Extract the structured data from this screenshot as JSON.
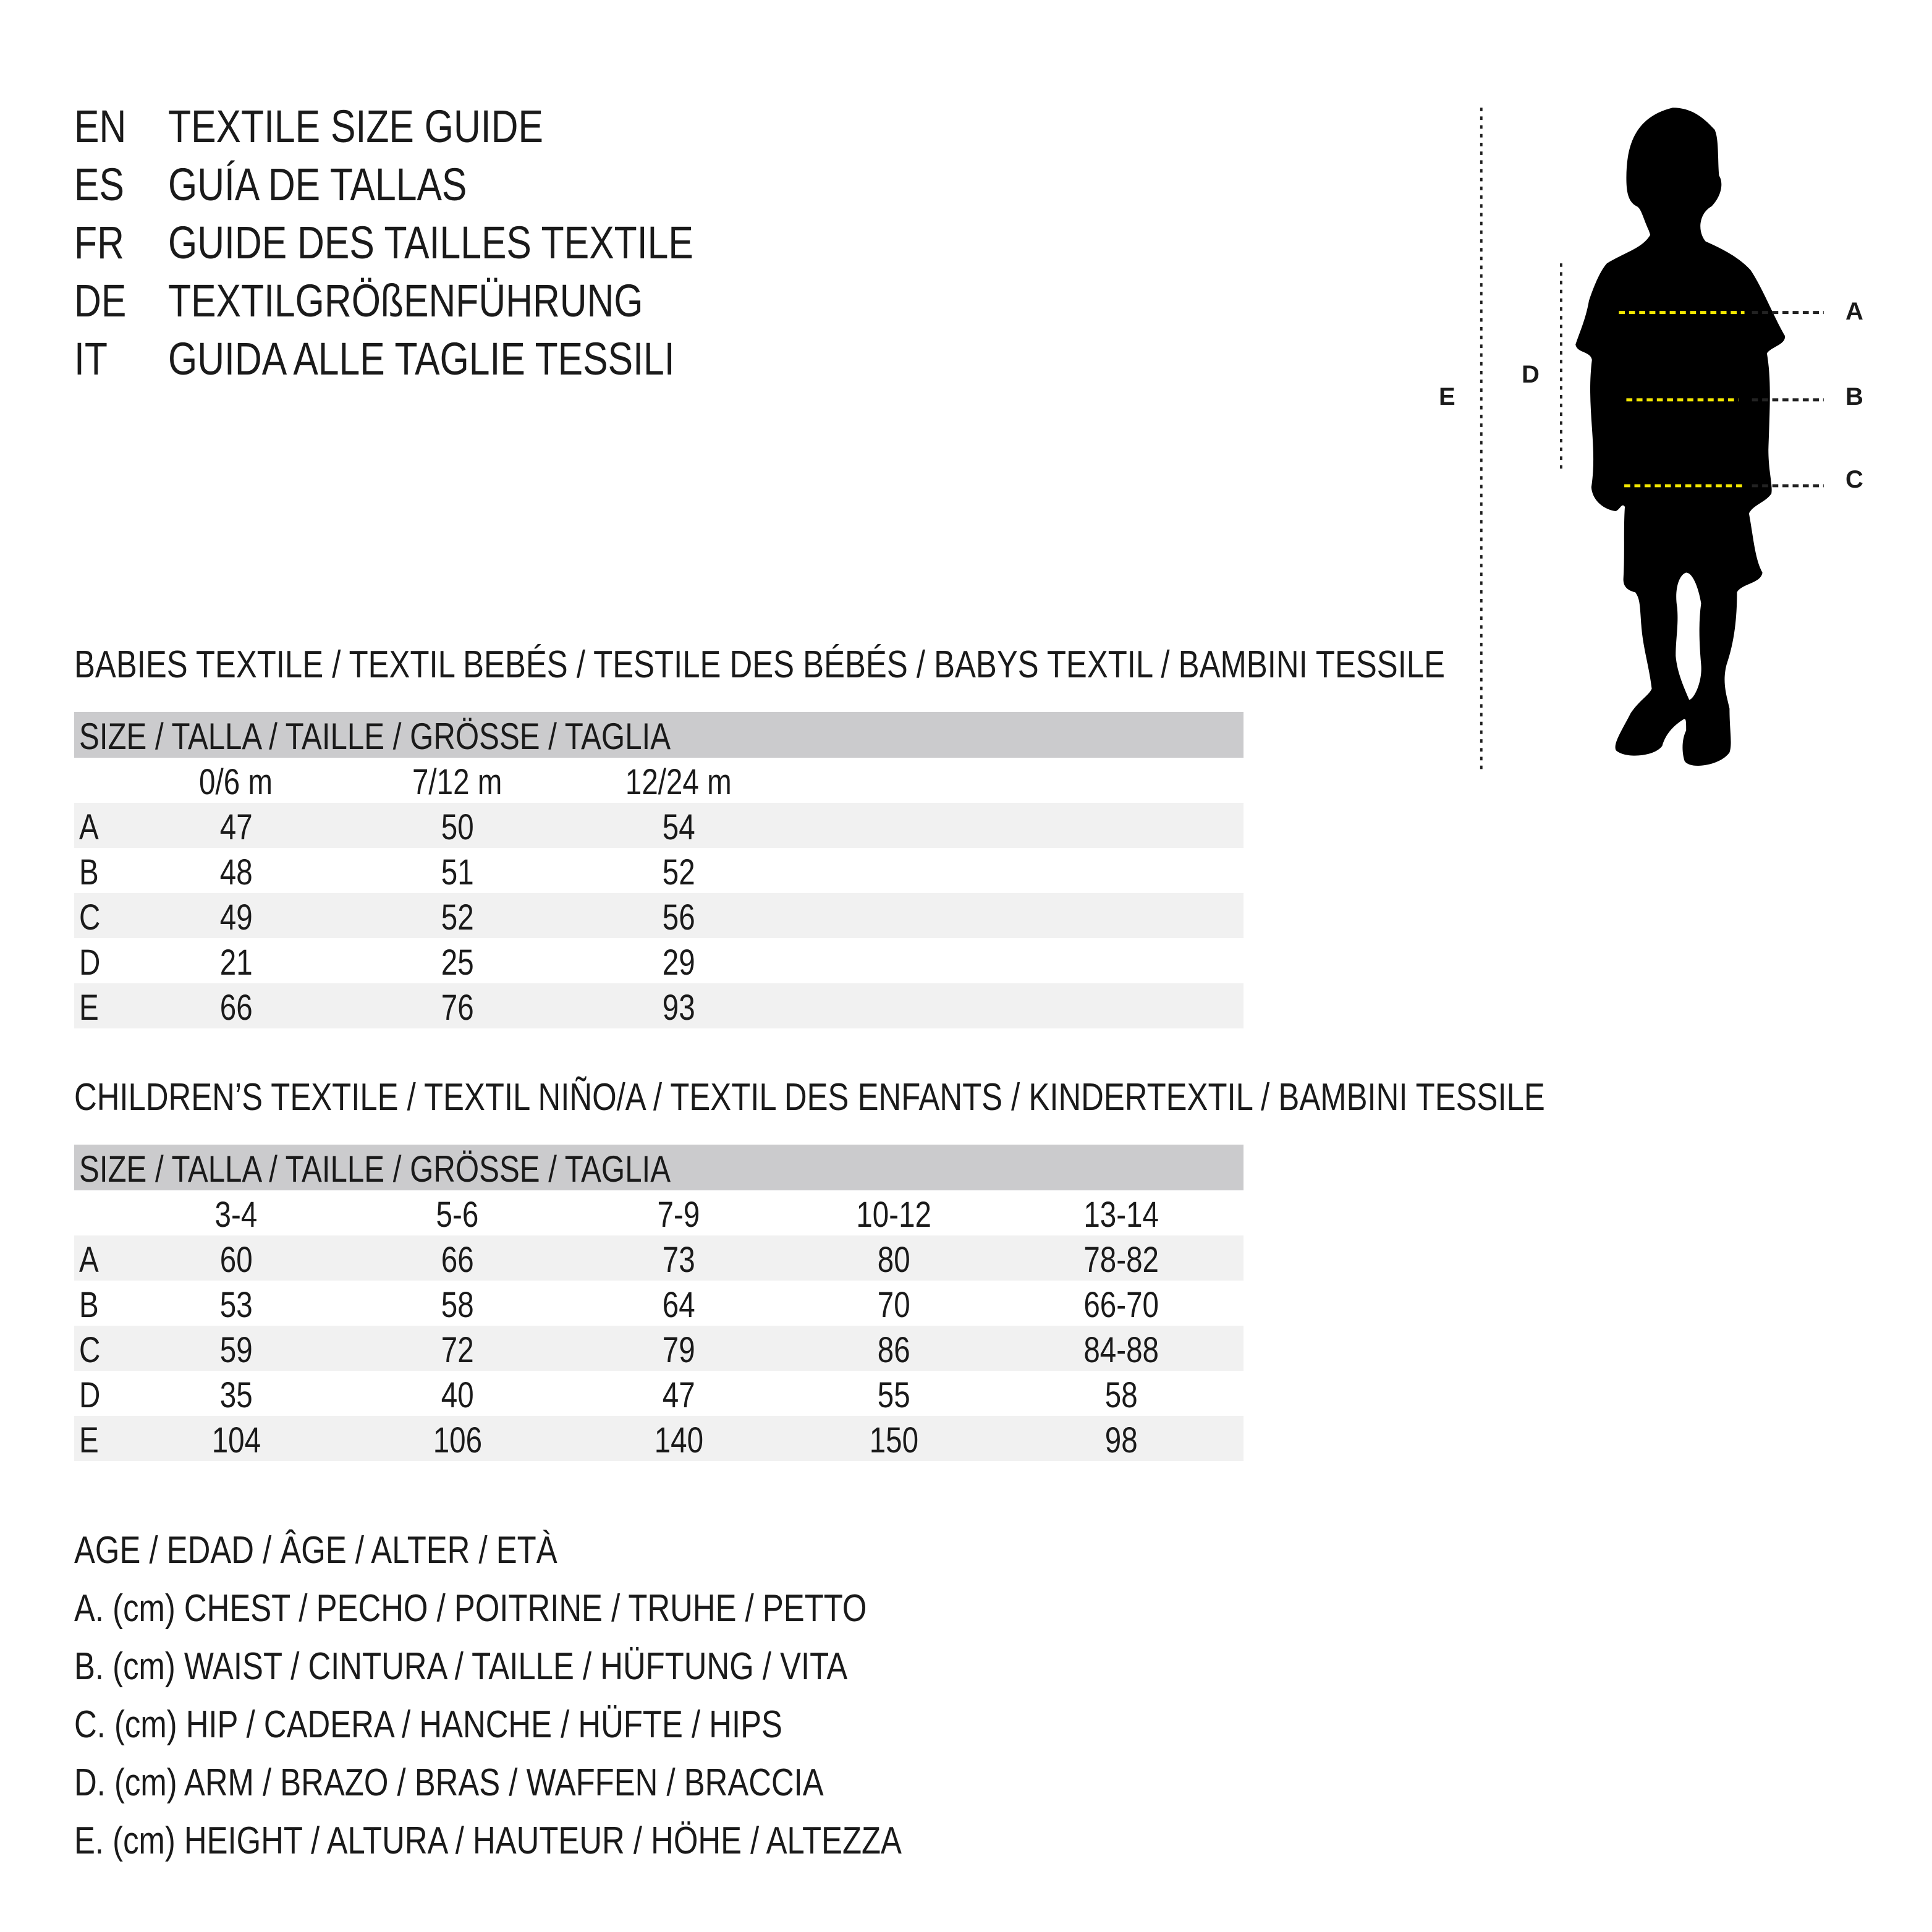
{
  "titles": [
    {
      "code": "EN",
      "text": "TEXTILE SIZE GUIDE"
    },
    {
      "code": "ES",
      "text": "GUÍA DE TALLAS"
    },
    {
      "code": "FR",
      "text": "GUIDE DES TAILLES TEXTILE"
    },
    {
      "code": "DE",
      "text": "TEXTILGRÖßENFÜHRUNG"
    },
    {
      "code": "IT",
      "text": "GUIDA ALLE TAGLIE TESSILI"
    }
  ],
  "figure": {
    "labels": {
      "A": "A",
      "B": "B",
      "C": "C",
      "D": "D",
      "E": "E"
    },
    "colors": {
      "silhouette": "#000000",
      "measure_line": "#f2e600",
      "guide_line": "#222222"
    }
  },
  "babies": {
    "heading": "BABIES TEXTILE / TEXTIL BEBÉS / TESTILE DES BÉBÉS / BABYS TEXTIL / BAMBINI TESSILE",
    "size_header": "SIZE / TALLA / TAILLE / GRÖSSE / TAGLIA",
    "columns": [
      "0/6 m",
      "7/12 m",
      "12/24 m"
    ],
    "rows": [
      {
        "label": "A",
        "values": [
          "47",
          "50",
          "54"
        ]
      },
      {
        "label": "B",
        "values": [
          "48",
          "51",
          "52"
        ]
      },
      {
        "label": "C",
        "values": [
          "49",
          "52",
          "56"
        ]
      },
      {
        "label": "D",
        "values": [
          "21",
          "25",
          "29"
        ]
      },
      {
        "label": "E",
        "values": [
          "66",
          "76",
          "93"
        ]
      }
    ]
  },
  "children": {
    "heading": "CHILDREN’S TEXTILE / TEXTIL NIÑO/A / TEXTIL DES ENFANTS / KINDERTEXTIL / BAMBINI TESSILE",
    "size_header": "SIZE / TALLA / TAILLE / GRÖSSE / TAGLIA",
    "columns": [
      "3-4",
      "5-6",
      "7-9",
      "10-12",
      "13-14"
    ],
    "rows": [
      {
        "label": "A",
        "values": [
          "60",
          "66",
          "73",
          "80",
          "78-82"
        ]
      },
      {
        "label": "B",
        "values": [
          "53",
          "58",
          "64",
          "70",
          "66-70"
        ]
      },
      {
        "label": "C",
        "values": [
          "59",
          "72",
          "79",
          "86",
          "84-88"
        ]
      },
      {
        "label": "D",
        "values": [
          "35",
          "40",
          "47",
          "55",
          "58"
        ]
      },
      {
        "label": "E",
        "values": [
          "104",
          "106",
          "140",
          "150",
          "98"
        ]
      }
    ]
  },
  "legend": [
    "AGE / EDAD / ÂGE / ALTER / ETÀ",
    "A. (cm) CHEST / PECHO / POITRINE / TRUHE / PETTO",
    "B. (cm) WAIST / CINTURA / TAILLE / HÜFTUNG / VITA",
    "C. (cm) HIP / CADERA / HANCHE / HÜFTE / HIPS",
    "D. (cm) ARM / BRAZO / BRAS / WAFFEN / BRACCIA",
    "E. (cm) HEIGHT / ALTURA / HAUTEUR / HÖHE / ALTEZZA"
  ]
}
